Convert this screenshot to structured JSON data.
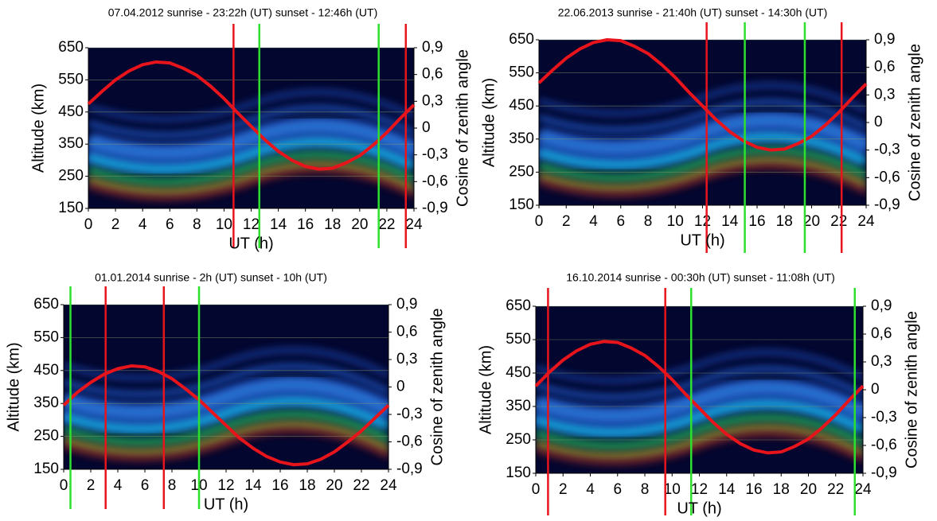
{
  "chart_data": [
    {
      "type": "line",
      "title": "07.04.2012 sunrise - 23:22h (UT) sunset - 12:46h (UT)",
      "xlabel": "UT (h)",
      "ylabel": "Altitude (km)",
      "y2label": "Cosine of zenith angle",
      "xlim": [
        0,
        24
      ],
      "xticks": [
        0,
        2,
        4,
        6,
        8,
        10,
        12,
        14,
        16,
        18,
        20,
        22,
        24
      ],
      "ylim": [
        150,
        650
      ],
      "yticks": [
        150,
        250,
        350,
        450,
        550,
        650
      ],
      "y2lim": [
        -0.9,
        0.9
      ],
      "y2ticks": [
        {
          "value": -0.9,
          "label": "-0,9"
        },
        {
          "value": -0.6,
          "label": "-0,6"
        },
        {
          "value": -0.3,
          "label": "-0,3"
        },
        0,
        {
          "value": 0.3,
          "label": "0,3"
        },
        {
          "value": 0.6,
          "label": "0,6"
        },
        {
          "value": 0.9,
          "label": "0,9"
        }
      ],
      "grid": true,
      "series": [
        {
          "color": "#e8141c",
          "axis": "y2",
          "x": [
            0,
            1,
            2,
            3,
            4,
            5,
            6,
            7,
            8,
            9,
            10,
            11,
            12,
            13,
            14,
            15,
            16,
            17,
            18,
            19,
            20,
            21,
            22,
            23,
            24
          ],
          "values": [
            0.27,
            0.41,
            0.54,
            0.64,
            0.71,
            0.74,
            0.73,
            0.67,
            0.59,
            0.47,
            0.33,
            0.17,
            0.02,
            -0.13,
            -0.26,
            -0.36,
            -0.43,
            -0.46,
            -0.45,
            -0.39,
            -0.31,
            -0.19,
            -0.05,
            0.11,
            0.26
          ]
        }
      ],
      "vertical_lines": [
        {
          "x": 10.7,
          "color": "#e8141c"
        },
        {
          "x": 12.6,
          "color": "#2ee02e"
        },
        {
          "x": 21.4,
          "color": "#2ee02e"
        },
        {
          "x": 23.4,
          "color": "#e8141c"
        }
      ]
    },
    {
      "type": "line",
      "title": "22.06.2013 sunrise - 21:40h (UT) sunset - 14:30h (UT)",
      "xlabel": "UT (h)",
      "ylabel": "Altitude (km)",
      "y2label": "Cosine of zenith angle",
      "xlim": [
        0,
        24
      ],
      "xticks": [
        0,
        2,
        4,
        6,
        8,
        10,
        12,
        14,
        16,
        18,
        20,
        22,
        24
      ],
      "ylim": [
        150,
        650
      ],
      "yticks": [
        150,
        250,
        350,
        450,
        550,
        650
      ],
      "y2lim": [
        -0.9,
        0.9
      ],
      "y2ticks": [
        {
          "value": -0.9,
          "label": "-0,9"
        },
        {
          "value": -0.6,
          "label": "-0,6"
        },
        {
          "value": -0.3,
          "label": "-0,3"
        },
        0,
        {
          "value": 0.3,
          "label": "0,3"
        },
        {
          "value": 0.6,
          "label": "0,6"
        },
        {
          "value": 0.9,
          "label": "0,9"
        }
      ],
      "grid": true,
      "series": [
        {
          "color": "#e8141c",
          "axis": "y2",
          "x": [
            0,
            1,
            2,
            3,
            4,
            5,
            6,
            7,
            8,
            9,
            10,
            11,
            12,
            13,
            14,
            15,
            16,
            17,
            18,
            19,
            20,
            21,
            22,
            23,
            24
          ],
          "values": [
            0.43,
            0.57,
            0.7,
            0.8,
            0.87,
            0.9,
            0.89,
            0.83,
            0.75,
            0.63,
            0.49,
            0.33,
            0.18,
            0.03,
            -0.1,
            -0.2,
            -0.27,
            -0.3,
            -0.29,
            -0.23,
            -0.15,
            -0.03,
            0.11,
            0.27,
            0.42
          ]
        }
      ],
      "vertical_lines": [
        {
          "x": 12.3,
          "color": "#e8141c"
        },
        {
          "x": 15.1,
          "color": "#2ee02e"
        },
        {
          "x": 19.5,
          "color": "#2ee02e"
        },
        {
          "x": 22.2,
          "color": "#e8141c"
        }
      ]
    },
    {
      "type": "line",
      "title": "01.01.2014 sunrise - 2h (UT) sunset - 10h (UT)",
      "xlabel": "UT (h)",
      "ylabel": "Altitude (km)",
      "y2label": "Cosine of zenith angle",
      "xlim": [
        0,
        24
      ],
      "xticks": [
        0,
        2,
        4,
        6,
        8,
        10,
        12,
        14,
        16,
        18,
        20,
        22,
        24
      ],
      "ylim": [
        150,
        650
      ],
      "yticks": [
        150,
        250,
        350,
        450,
        550,
        650
      ],
      "y2lim": [
        -0.9,
        0.9
      ],
      "y2ticks": [
        {
          "value": -0.9,
          "label": "-0,9"
        },
        {
          "value": -0.6,
          "label": "-0,6"
        },
        {
          "value": -0.3,
          "label": "-0,3"
        },
        0,
        {
          "value": 0.3,
          "label": "0,3"
        },
        {
          "value": 0.6,
          "label": "0,6"
        },
        {
          "value": 0.9,
          "label": "0,9"
        }
      ],
      "grid": true,
      "series": [
        {
          "color": "#e8141c",
          "axis": "y2",
          "x": [
            0,
            1,
            2,
            3,
            4,
            5,
            6,
            7,
            8,
            9,
            10,
            11,
            12,
            13,
            14,
            15,
            16,
            17,
            18,
            19,
            20,
            21,
            22,
            23,
            24
          ],
          "values": [
            -0.2,
            -0.06,
            0.05,
            0.14,
            0.2,
            0.23,
            0.22,
            0.17,
            0.09,
            -0.02,
            -0.14,
            -0.28,
            -0.42,
            -0.56,
            -0.67,
            -0.76,
            -0.82,
            -0.85,
            -0.84,
            -0.79,
            -0.71,
            -0.6,
            -0.48,
            -0.34,
            -0.2
          ]
        }
      ],
      "vertical_lines": [
        {
          "x": 0.5,
          "color": "#2ee02e"
        },
        {
          "x": 3.1,
          "color": "#e8141c"
        },
        {
          "x": 7.4,
          "color": "#e8141c"
        },
        {
          "x": 10.0,
          "color": "#2ee02e"
        }
      ]
    },
    {
      "type": "line",
      "title": "16.10.2014 sunrise - 00:30h (UT) sunset - 11:08h (UT)",
      "xlabel": "UT (h)",
      "ylabel": "Altitude (km)",
      "y2label": "Cosine of zenith angle",
      "xlim": [
        0,
        24
      ],
      "xticks": [
        0,
        2,
        4,
        6,
        8,
        10,
        12,
        14,
        16,
        18,
        20,
        22,
        24
      ],
      "ylim": [
        150,
        650
      ],
      "yticks": [
        150,
        250,
        350,
        450,
        550,
        650
      ],
      "y2lim": [
        -0.9,
        0.9
      ],
      "y2ticks": [
        {
          "value": -0.9,
          "label": "-0,9"
        },
        {
          "value": -0.6,
          "label": "-0,6"
        },
        {
          "value": -0.3,
          "label": "-0,3"
        },
        0,
        {
          "value": 0.3,
          "label": "0,3"
        },
        {
          "value": 0.6,
          "label": "0,6"
        },
        {
          "value": 0.9,
          "label": "0,9"
        }
      ],
      "grid": true,
      "series": [
        {
          "color": "#e8141c",
          "axis": "y2",
          "x": [
            0,
            1,
            2,
            3,
            4,
            5,
            6,
            7,
            8,
            9,
            10,
            11,
            12,
            13,
            14,
            15,
            16,
            17,
            18,
            19,
            20,
            21,
            22,
            23,
            24
          ],
          "values": [
            0.04,
            0.19,
            0.32,
            0.42,
            0.49,
            0.52,
            0.51,
            0.45,
            0.37,
            0.25,
            0.11,
            -0.05,
            -0.2,
            -0.35,
            -0.48,
            -0.58,
            -0.65,
            -0.68,
            -0.67,
            -0.61,
            -0.53,
            -0.41,
            -0.27,
            -0.11,
            0.04
          ]
        }
      ],
      "vertical_lines": [
        {
          "x": 0.9,
          "color": "#e8141c"
        },
        {
          "x": 9.5,
          "color": "#e8141c"
        },
        {
          "x": 11.4,
          "color": "#2ee02e"
        },
        {
          "x": 23.4,
          "color": "#2ee02e"
        }
      ]
    }
  ]
}
